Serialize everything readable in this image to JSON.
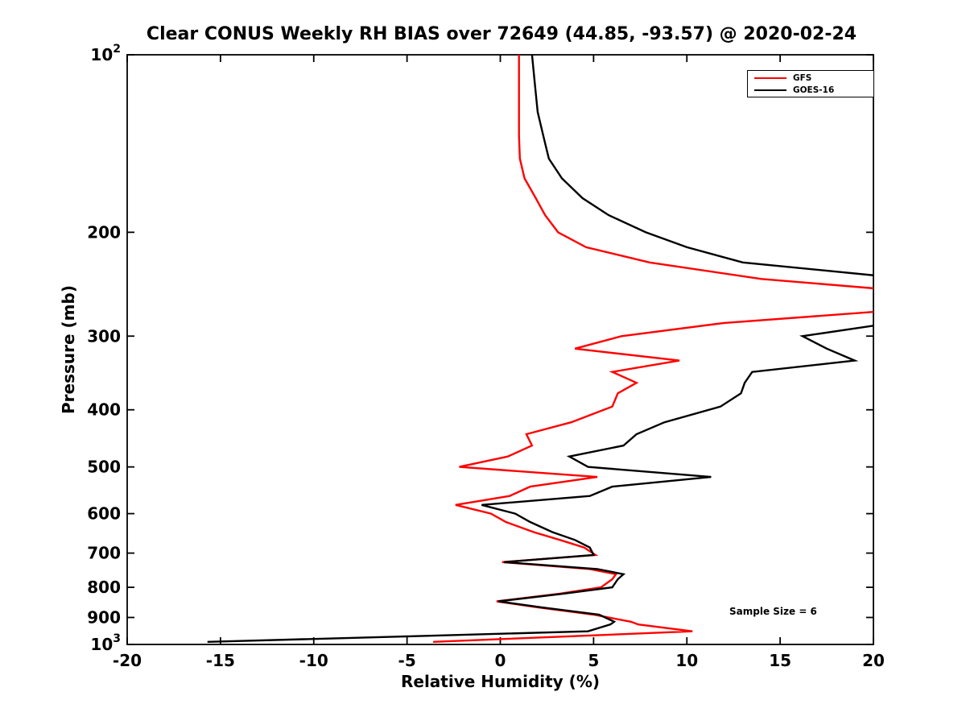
{
  "chart_data": {
    "type": "line",
    "title": "Clear CONUS Weekly RH BIAS over 72649 (44.85, -93.57) @ 2020-02-24",
    "xlabel": "Relative Humidity (%)",
    "ylabel": "Pressure (mb)",
    "annotation": "Sample Size = 6",
    "xlim": [
      -20,
      20
    ],
    "ylim": [
      100,
      1000
    ],
    "y_scale": "log10",
    "y_inverted": true,
    "grid": false,
    "background": "#ffffff",
    "axis_color": "#000000",
    "legend_position": "top-right",
    "x_ticks": [
      {
        "value": -20,
        "label": "-20"
      },
      {
        "value": -15,
        "label": "-15"
      },
      {
        "value": -10,
        "label": "-10"
      },
      {
        "value": -5,
        "label": "-5"
      },
      {
        "value": 0,
        "label": "0"
      },
      {
        "value": 5,
        "label": "5"
      },
      {
        "value": 10,
        "label": "10"
      },
      {
        "value": 15,
        "label": "15"
      },
      {
        "value": 20,
        "label": "20"
      }
    ],
    "y_ticks": [
      {
        "value": 100,
        "base": "10",
        "sup": "2"
      },
      {
        "value": 200,
        "label": "200"
      },
      {
        "value": 300,
        "label": "300"
      },
      {
        "value": 400,
        "label": "400"
      },
      {
        "value": 500,
        "label": "500"
      },
      {
        "value": 600,
        "label": "600"
      },
      {
        "value": 700,
        "label": "700"
      },
      {
        "value": 800,
        "label": "800"
      },
      {
        "value": 900,
        "label": "900"
      },
      {
        "value": 1000,
        "base": "10",
        "sup": "3"
      }
    ],
    "pressure_levels": [
      100,
      112,
      125,
      137,
      150,
      162,
      175,
      187,
      200,
      212,
      225,
      240,
      255,
      270,
      285,
      300,
      315,
      330,
      345,
      360,
      375,
      395,
      420,
      440,
      460,
      480,
      500,
      520,
      540,
      560,
      580,
      600,
      620,
      645,
      665,
      685,
      705,
      725,
      745,
      760,
      775,
      800,
      820,
      845,
      865,
      890,
      915,
      925,
      950,
      970,
      990
    ],
    "series": [
      {
        "name": "GFS",
        "color": "#ff0000",
        "values": [
          1.0,
          1.0,
          1.0,
          1.0,
          1.05,
          1.3,
          1.9,
          2.4,
          3.1,
          4.6,
          8.0,
          14.0,
          24.0,
          22.0,
          12.0,
          6.5,
          4.0,
          9.6,
          6.0,
          7.3,
          6.3,
          6.0,
          3.8,
          1.4,
          1.7,
          0.4,
          -2.2,
          5.2,
          1.6,
          0.5,
          -2.4,
          -0.5,
          0.3,
          1.8,
          3.2,
          4.5,
          5.1,
          0.1,
          4.8,
          6.2,
          6.0,
          5.4,
          3.2,
          -0.2,
          2.0,
          5.0,
          7.0,
          7.4,
          10.3,
          3.3,
          -3.6
        ]
      },
      {
        "name": "GOES-16",
        "color": "#000000",
        "values": [
          1.7,
          1.85,
          2.0,
          2.3,
          2.6,
          3.3,
          4.4,
          5.8,
          7.8,
          10.0,
          13.0,
          22.0,
          26.0,
          24.0,
          21.0,
          16.2,
          17.5,
          19.0,
          13.5,
          13.1,
          12.9,
          11.8,
          8.8,
          7.3,
          6.6,
          3.7,
          4.7,
          11.3,
          6.0,
          4.8,
          -1.0,
          0.8,
          1.6,
          2.8,
          4.0,
          4.8,
          5.0,
          0.2,
          5.2,
          6.6,
          6.3,
          6.0,
          3.4,
          -0.1,
          2.2,
          5.3,
          6.1,
          5.9,
          4.7,
          -5.5,
          -15.7
        ]
      }
    ]
  }
}
